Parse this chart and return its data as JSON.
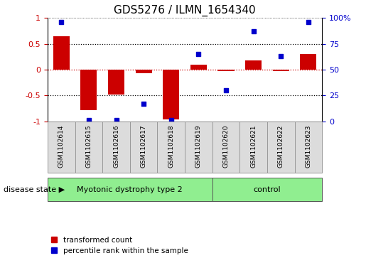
{
  "title": "GDS5276 / ILMN_1654340",
  "samples": [
    "GSM1102614",
    "GSM1102615",
    "GSM1102616",
    "GSM1102617",
    "GSM1102618",
    "GSM1102619",
    "GSM1102620",
    "GSM1102621",
    "GSM1102622",
    "GSM1102623"
  ],
  "red_values": [
    0.65,
    -0.78,
    -0.48,
    -0.07,
    -0.97,
    0.09,
    -0.03,
    0.18,
    -0.03,
    0.3
  ],
  "blue_values": [
    96,
    1,
    1,
    17,
    1,
    65,
    30,
    87,
    63,
    96
  ],
  "disease_groups": [
    {
      "label": "Myotonic dystrophy type 2",
      "start": 0,
      "end": 6,
      "color": "#90EE90"
    },
    {
      "label": "control",
      "start": 6,
      "end": 10,
      "color": "#90EE90"
    }
  ],
  "ylim_left": [
    -1,
    1
  ],
  "ylim_right": [
    0,
    100
  ],
  "yticks_left": [
    -1,
    -0.5,
    0,
    0.5,
    1
  ],
  "yticks_right": [
    0,
    25,
    50,
    75,
    100
  ],
  "yticklabels_right": [
    "0",
    "25",
    "50",
    "75",
    "100%"
  ],
  "red_color": "#CC0000",
  "blue_color": "#0000CC",
  "bg_color": "#DCDCDC",
  "zero_line_color": "#CC0000",
  "hline_color": "#000000",
  "legend_red_label": "transformed count",
  "legend_blue_label": "percentile rank within the sample",
  "disease_state_label": "disease state"
}
